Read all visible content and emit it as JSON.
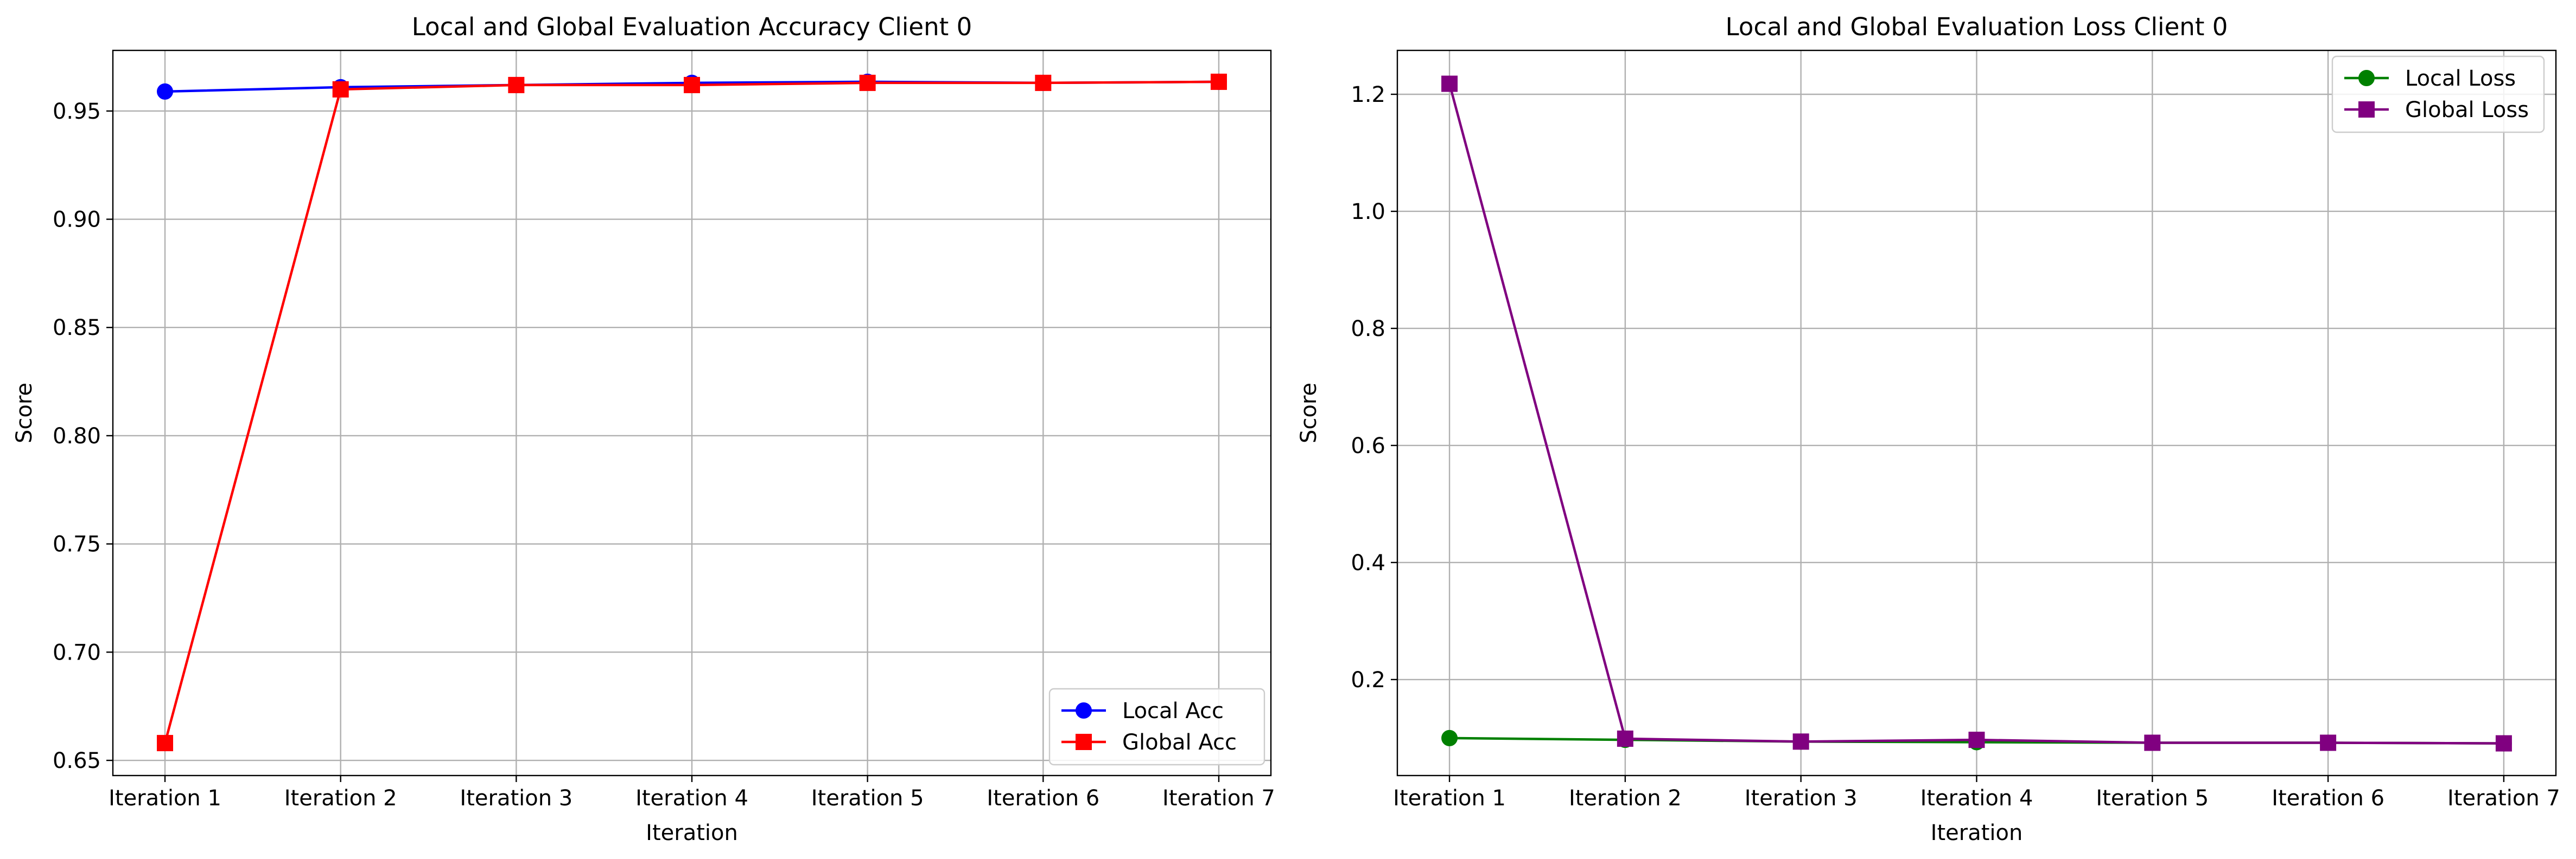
{
  "chart_data": [
    {
      "type": "line",
      "title": "Local and Global Evaluation Accuracy Client 0",
      "xlabel": "Iteration",
      "ylabel": "Score",
      "categories": [
        "Iteration 1",
        "Iteration 2",
        "Iteration 3",
        "Iteration 4",
        "Iteration 5",
        "Iteration 6",
        "Iteration 7"
      ],
      "ylim": [
        0.643,
        0.978
      ],
      "yticks": [
        0.65,
        0.7,
        0.75,
        0.8,
        0.85,
        0.9,
        0.95
      ],
      "ytick_labels": [
        "0.65",
        "0.70",
        "0.75",
        "0.80",
        "0.85",
        "0.90",
        "0.95"
      ],
      "grid": true,
      "legend_position": "lower-right",
      "series": [
        {
          "name": "Local Acc",
          "color": "#0000ff",
          "marker": "circle",
          "values": [
            0.959,
            0.961,
            0.962,
            0.963,
            0.9635,
            0.963,
            0.9635
          ]
        },
        {
          "name": "Global Acc",
          "color": "#ff0000",
          "marker": "square",
          "values": [
            0.658,
            0.96,
            0.962,
            0.962,
            0.963,
            0.963,
            0.9635
          ]
        }
      ]
    },
    {
      "type": "line",
      "title": "Local and Global Evaluation Loss Client 0",
      "xlabel": "Iteration",
      "ylabel": "Score",
      "categories": [
        "Iteration 1",
        "Iteration 2",
        "Iteration 3",
        "Iteration 4",
        "Iteration 5",
        "Iteration 6",
        "Iteration 7"
      ],
      "ylim": [
        0.036,
        1.275
      ],
      "yticks": [
        0.2,
        0.4,
        0.6,
        0.8,
        1.0,
        1.2
      ],
      "ytick_labels": [
        "0.2",
        "0.4",
        "0.6",
        "0.8",
        "1.0",
        "1.2"
      ],
      "grid": true,
      "legend_position": "upper-right",
      "series": [
        {
          "name": "Local Loss",
          "color": "#008000",
          "marker": "circle",
          "values": [
            0.1,
            0.097,
            0.094,
            0.093,
            0.092,
            0.092,
            0.091
          ]
        },
        {
          "name": "Global Loss",
          "color": "#800080",
          "marker": "square",
          "values": [
            1.218,
            0.099,
            0.094,
            0.097,
            0.092,
            0.092,
            0.091
          ]
        }
      ]
    }
  ]
}
